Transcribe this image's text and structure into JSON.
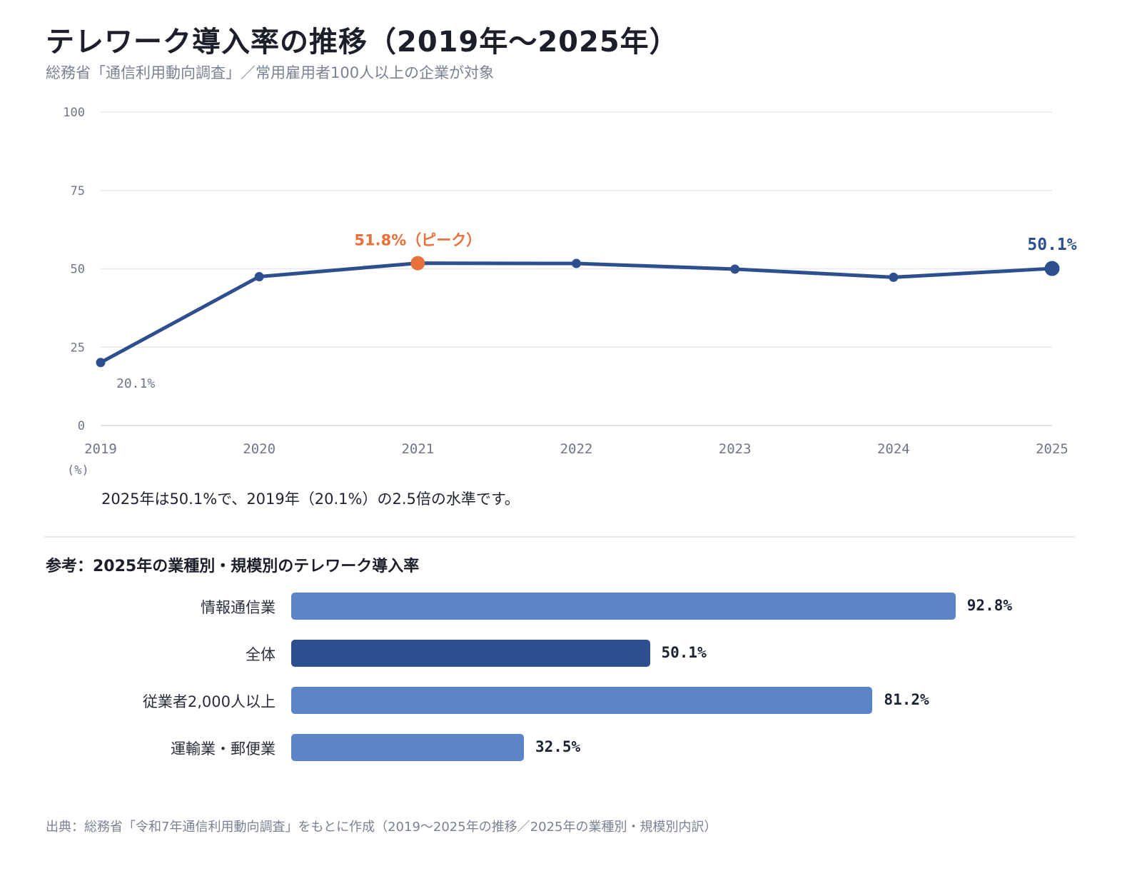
{
  "title": "テレワーク導入率の推移（2019年〜2025年）",
  "subtitle": "総務省「通信利用動向調査」／常用雇用者100人以上の企業が対象",
  "colors": {
    "line": "#2e4f8d",
    "peak": "#e8703a",
    "bar_default": "#5c84c8",
    "bar_highlight": "#2e4f8d"
  },
  "chart_data": [
    {
      "type": "line",
      "categories": [
        "2019",
        "2020",
        "2021",
        "2022",
        "2023",
        "2024",
        "2025"
      ],
      "series": [
        {
          "values": [
            20.1,
            47.5,
            51.8,
            51.7,
            49.9,
            47.3,
            50.1
          ]
        }
      ],
      "ylim": [
        0,
        100
      ],
      "yticks": [
        0,
        25,
        50,
        75,
        100
      ],
      "ylabel": "(%)",
      "grid": true,
      "annotations": [
        {
          "category": "2019",
          "text": "20.1%"
        },
        {
          "category": "2021",
          "text": "51.8%（ピーク）"
        },
        {
          "category": "2025",
          "text": "50.1%"
        }
      ]
    },
    {
      "type": "bar",
      "orientation": "horizontal",
      "title": "参考：2025年の業種別・規模別のテレワーク導入率",
      "categories": [
        "情報通信業",
        "全体",
        "従業者2,000人以上",
        "運輸業・郵便業"
      ],
      "values": [
        92.8,
        50.1,
        81.2,
        32.5
      ],
      "value_labels": [
        "92.8%",
        "50.1%",
        "81.2%",
        "32.5%"
      ],
      "highlight": "全体",
      "xlim": [
        0,
        100
      ]
    }
  ],
  "note": "2025年は50.1%で、2019年（20.1%）の2.5倍の水準です。",
  "source": "出典：総務省「令和7年通信利用動向調査」をもとに作成（2019〜2025年の推移／2025年の業種別・規模別内訳）"
}
